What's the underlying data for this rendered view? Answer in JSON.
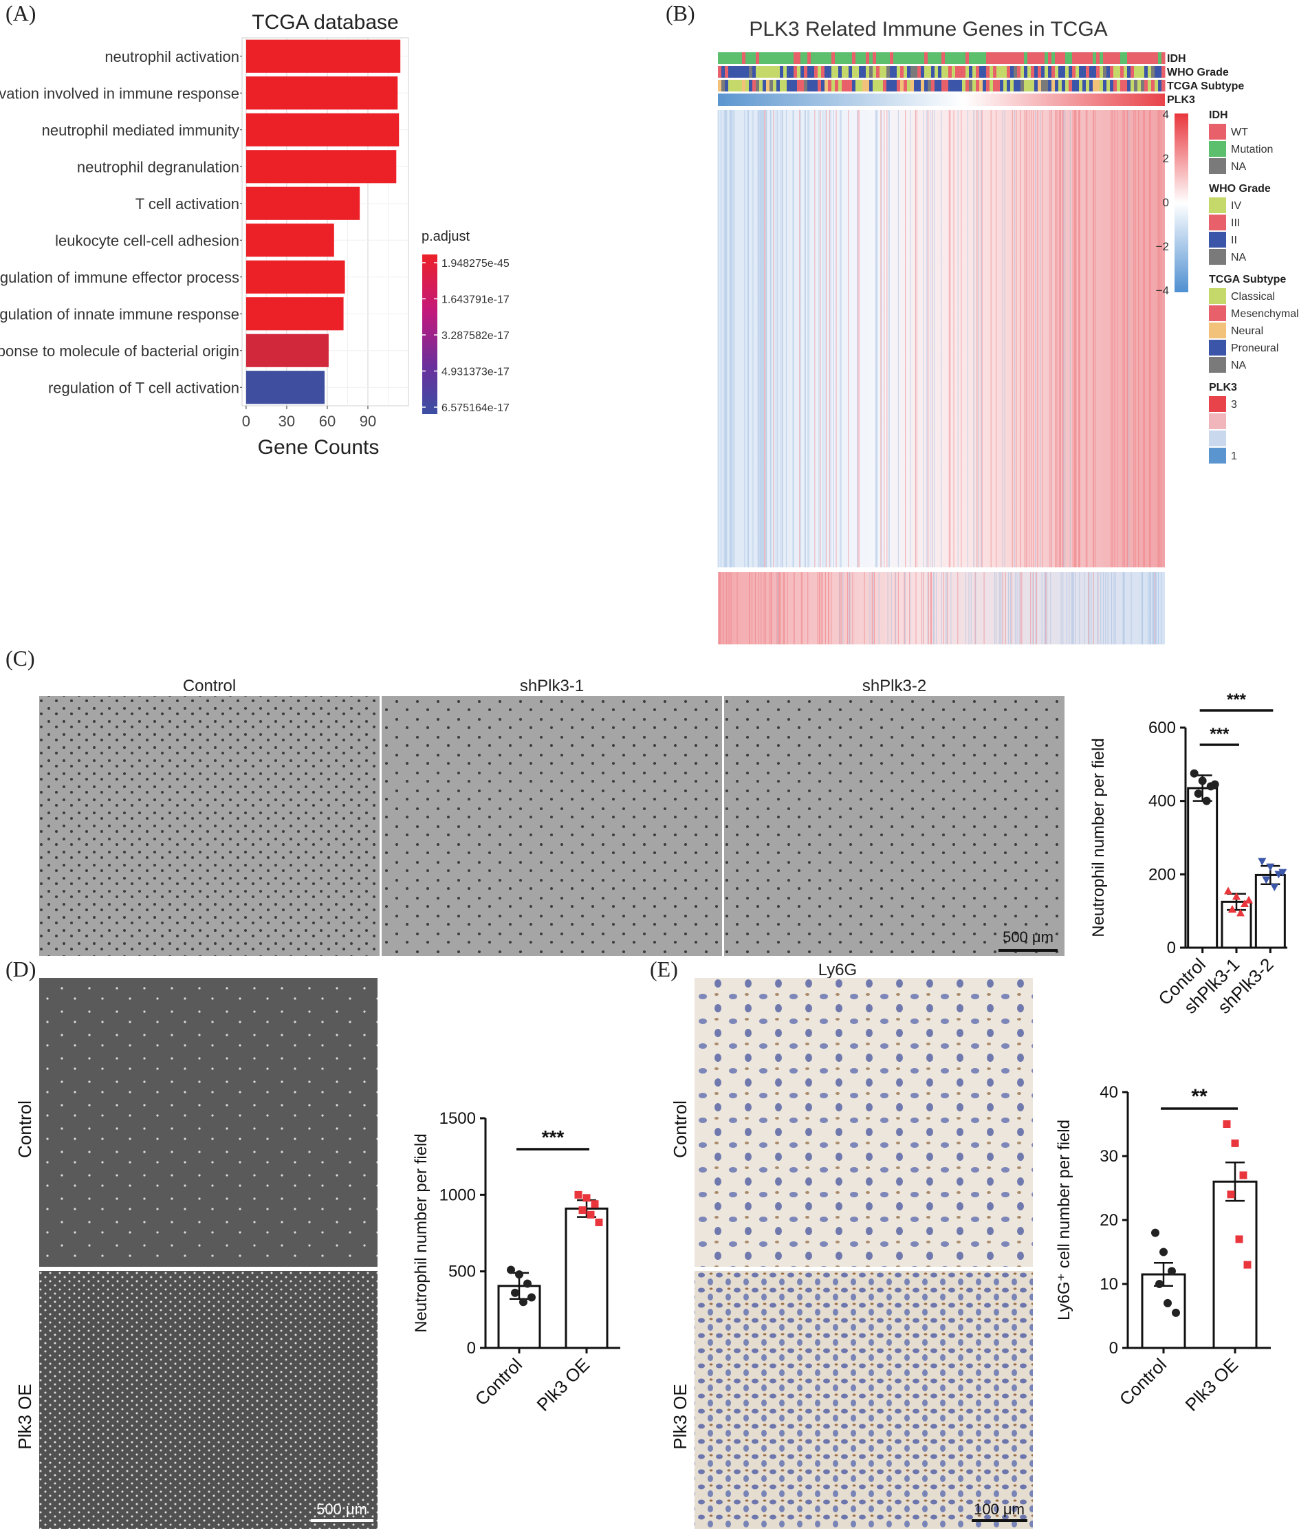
{
  "panels": {
    "A": "(A)",
    "B": "(B)",
    "C": "(C)",
    "D": "(D)",
    "E": "(E)"
  },
  "chart_data": [
    {
      "id": "A",
      "type": "bar",
      "orientation": "horizontal",
      "title": "TCGA database",
      "xlabel": "Gene Counts",
      "xlim": [
        -3,
        120
      ],
      "xticks": [
        0,
        30,
        60,
        90
      ],
      "categories": [
        "neutrophil activation",
        "neutrophil activation involved in immune response",
        "neutrophil mediated immunity",
        "neutrophil degranulation",
        "T cell activation",
        "leukocyte cell-cell adhesion",
        "regulation of immune effector process",
        "regulation of innate immune response",
        "response to molecule of bacterial origin",
        "regulation of T cell activation"
      ],
      "values": [
        114,
        112,
        113,
        111,
        84,
        65,
        73,
        72,
        61,
        58
      ],
      "padjust": [
        1e-45,
        1e-45,
        1e-45,
        1e-45,
        1e-45,
        1e-45,
        1e-45,
        1e-45,
        1e-17,
        6.4e-17
      ],
      "legend": {
        "title": "p.adjust",
        "labels": [
          "1.948275e-45",
          "1.643791e-17",
          "3.287582e-17",
          "4.931373e-17",
          "6.575164e-17"
        ],
        "colors": [
          "#ec2128",
          "#c4197a",
          "#8a2a9a",
          "#5a3aa0",
          "#3b4fa2"
        ]
      },
      "grid": true
    },
    {
      "id": "B",
      "type": "heatmap",
      "title": "PLK3 Related Immune Genes in TCGA",
      "annotation_rows": [
        "IDH",
        "WHO Grade",
        "TCGA Subtype",
        "PLK3"
      ],
      "colorbar": {
        "ticks": [
          "4",
          "2",
          "0",
          "−2",
          "−4"
        ],
        "low": "#4f8fd1",
        "mid": "#ffffff",
        "high": "#e8363c"
      },
      "legends": [
        {
          "title": "IDH",
          "items": [
            {
              "label": "WT",
              "color": "#e8606a"
            },
            {
              "label": "Mutation",
              "color": "#5cbf6e"
            },
            {
              "label": "NA",
              "color": "#7a7a7a"
            }
          ]
        },
        {
          "title": "WHO Grade",
          "items": [
            {
              "label": "IV",
              "color": "#c5d96a"
            },
            {
              "label": "III",
              "color": "#e8606a"
            },
            {
              "label": "II",
              "color": "#3b55a8"
            },
            {
              "label": "NA",
              "color": "#7a7a7a"
            }
          ]
        },
        {
          "title": "TCGA Subtype",
          "items": [
            {
              "label": "Classical",
              "color": "#c5d96a"
            },
            {
              "label": "Mesenchymal",
              "color": "#e8606a"
            },
            {
              "label": "Neural",
              "color": "#f2c27a"
            },
            {
              "label": "Proneural",
              "color": "#3b55a8"
            },
            {
              "label": "NA",
              "color": "#7a7a7a"
            }
          ]
        },
        {
          "title": "PLK3",
          "items": [
            {
              "label": "3",
              "color": "#e8434a"
            },
            {
              "label": "",
              "color": "#f1b6bb"
            },
            {
              "label": "",
              "color": "#c9d8ec"
            },
            {
              "label": "1",
              "color": "#5b95cf"
            }
          ]
        }
      ]
    },
    {
      "id": "C",
      "type": "bar",
      "ylabel": "Neutrophil number per field",
      "ylim": [
        0,
        600
      ],
      "yticks": [
        0,
        200,
        400,
        600
      ],
      "categories": [
        "Control",
        "shPlk3-1",
        "shPlk3-2"
      ],
      "values": [
        435,
        125,
        198
      ],
      "errors": [
        35,
        22,
        25
      ],
      "points": [
        [
          475,
          455,
          440,
          420,
          400,
          445
        ],
        [
          155,
          140,
          120,
          105,
          95,
          130
        ],
        [
          235,
          220,
          200,
          185,
          165,
          205
        ]
      ],
      "point_colors": [
        "#222222",
        "#e8363c",
        "#3b55a8"
      ],
      "significance": [
        {
          "label": "***",
          "from": 0,
          "to": 1
        },
        {
          "label": "***",
          "from": 0,
          "to": 2
        }
      ],
      "images": [
        "Control",
        "shPlk3-1",
        "shPlk3-2"
      ],
      "scale_bar": "500 μm"
    },
    {
      "id": "D",
      "type": "bar",
      "ylabel": "Neutrophil number per field",
      "ylim": [
        0,
        1500
      ],
      "yticks": [
        0,
        500,
        1000,
        1500
      ],
      "categories": [
        "Control",
        "Plk3 OE"
      ],
      "values": [
        405,
        910
      ],
      "errors": [
        85,
        55
      ],
      "points": [
        [
          510,
          480,
          420,
          360,
          300,
          330
        ],
        [
          1000,
          980,
          940,
          900,
          870,
          820
        ]
      ],
      "point_colors": [
        "#222222",
        "#e8363c"
      ],
      "significance": [
        {
          "label": "***",
          "from": 0,
          "to": 1
        }
      ],
      "images": [
        "Control",
        "Plk3 OE"
      ],
      "scale_bar": "500 μm"
    },
    {
      "id": "E",
      "type": "bar",
      "title": "Ly6G",
      "ylabel": "Ly6G⁺ cell number per field",
      "ylim": [
        0,
        40
      ],
      "yticks": [
        0,
        10,
        20,
        30,
        40
      ],
      "categories": [
        "Control",
        "Plk3 OE"
      ],
      "values": [
        11.5,
        26
      ],
      "errors": [
        1.8,
        3.0
      ],
      "points": [
        [
          18,
          15,
          12,
          10,
          7,
          5.5
        ],
        [
          35,
          32,
          27,
          24,
          17,
          13
        ]
      ],
      "point_colors": [
        "#222222",
        "#e8363c"
      ],
      "significance": [
        {
          "label": "**",
          "from": 0,
          "to": 1
        }
      ],
      "images": [
        "Control",
        "Plk3 OE"
      ],
      "scale_bar": "100 μm"
    }
  ]
}
